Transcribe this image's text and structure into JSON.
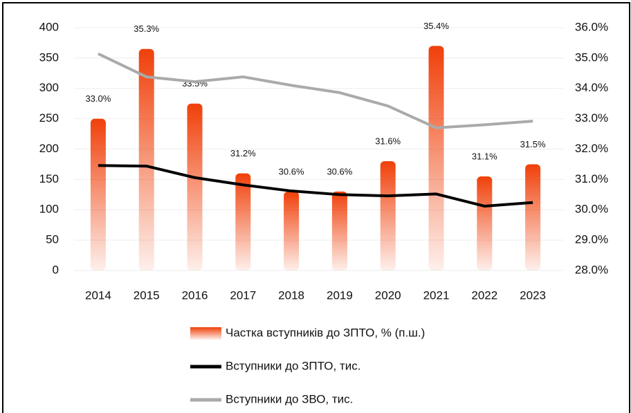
{
  "chart_data": {
    "type": "bar",
    "categories": [
      "2014",
      "2015",
      "2016",
      "2017",
      "2018",
      "2019",
      "2020",
      "2021",
      "2022",
      "2023"
    ],
    "series": [
      {
        "name": "Частка вступників до ЗПТО, % (п.ш.)",
        "type": "bar",
        "axis": "y2",
        "color": "#f0400a",
        "values": [
          33.0,
          35.3,
          33.5,
          31.2,
          30.6,
          30.6,
          31.6,
          35.4,
          31.1,
          31.5
        ],
        "value_labels": [
          "33.0%",
          "35.3%",
          "33.5%",
          "31.2%",
          "30.6%",
          "30.6%",
          "31.6%",
          "35.4%",
          "31.1%",
          "31.5%"
        ]
      },
      {
        "name": "Вступники до ЗПТО, тис.",
        "type": "line",
        "color": "#000000",
        "values": [
          173,
          172,
          153,
          141,
          131,
          125,
          123,
          126,
          106,
          112
        ]
      },
      {
        "name": "Вступники до ЗВО, тис.",
        "type": "line",
        "color": "#aaaaaa",
        "values": [
          357,
          319,
          311,
          319,
          305,
          293,
          271,
          235,
          240,
          246
        ]
      }
    ],
    "ylim": [
      0,
      400
    ],
    "yticks": [
      0,
      50,
      100,
      150,
      200,
      250,
      300,
      350,
      400
    ],
    "y2lim": [
      28,
      36
    ],
    "y2ticks": [
      {
        "value": 28,
        "label": "28.0%"
      },
      {
        "value": 29,
        "label": "29.0%"
      },
      {
        "value": 30,
        "label": "30.0%"
      },
      {
        "value": 31,
        "label": "31.0%"
      },
      {
        "value": 32,
        "label": "32.0%"
      },
      {
        "value": 33,
        "label": "33.0%"
      },
      {
        "value": 34,
        "label": "34.0%"
      },
      {
        "value": 35,
        "label": "35.0%"
      },
      {
        "value": 36,
        "label": "36.0%"
      }
    ],
    "grid": true,
    "legend": "bottom"
  }
}
